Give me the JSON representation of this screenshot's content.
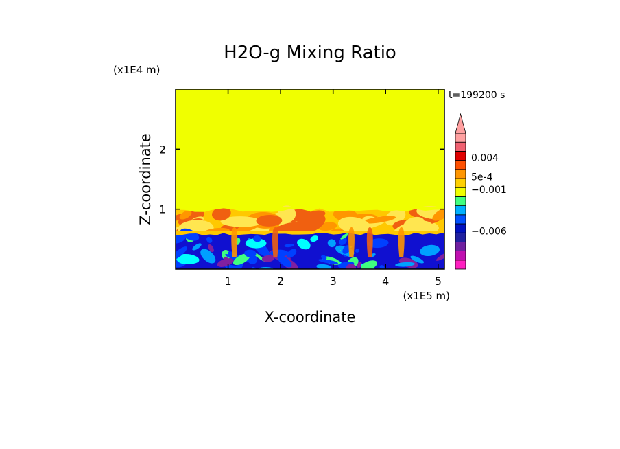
{
  "chart_data": {
    "type": "heatmap",
    "title": "H2O-g Mixing Ratio",
    "xlabel": "X-coordinate",
    "ylabel": "Z-coordinate",
    "x_scale_label": "(x1E5 m)",
    "y_scale_label": "(x1E4 m)",
    "time_label": "t=199200 s",
    "xlim": [
      0,
      5.12
    ],
    "ylim": [
      0,
      3.0
    ],
    "x_ticks": [
      1,
      2,
      3,
      4,
      5
    ],
    "x_tick_labels": [
      "1",
      "2",
      "3",
      "4",
      "5"
    ],
    "y_ticks": [
      1,
      2
    ],
    "y_tick_labels": [
      "1",
      "2"
    ],
    "grid": false,
    "fields": {
      "upper_uniform": {
        "z_range": [
          1.02,
          3.0
        ],
        "color": "#F0FF00"
      },
      "turbulent_moist_layer": {
        "z_range": [
          0.6,
          1.02
        ],
        "colors": [
          "#FFC800",
          "#FF9600",
          "#F06010",
          "#FFE650"
        ]
      },
      "dry_boundary_layer": {
        "z_range": [
          0,
          0.6
        ],
        "colors": [
          "#1010D0",
          "#0040FF",
          "#00A0FF",
          "#00FFFF",
          "#40FF80",
          "#8020A0"
        ]
      }
    },
    "colorbar": {
      "colors": [
        "#FF20C0",
        "#C010B0",
        "#7020A0",
        "#2020A0",
        "#0010C0",
        "#0050FF",
        "#00B0FF",
        "#40FF80",
        "#F0FF00",
        "#FFD000",
        "#FF9600",
        "#FF5000",
        "#E00000",
        "#F06070",
        "#FFA0A0"
      ],
      "extend": "max",
      "tick_labels": [
        {
          "text": "0.004",
          "level_index": 12.3
        },
        {
          "text": "5e-4",
          "level_index": 10.2
        },
        {
          "text": "−0.001",
          "level_index": 8.8
        },
        {
          "text": "−0.006",
          "level_index": 4.2
        }
      ]
    }
  }
}
